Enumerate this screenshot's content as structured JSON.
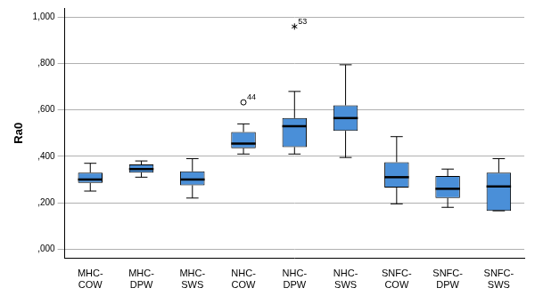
{
  "chart_data": {
    "type": "box",
    "y_label": "Ra0",
    "categories": [
      "MHC-COW",
      "MHC-DPW",
      "MHC-SWS",
      "NHC-COW",
      "NHC-DPW",
      "NHC-SWS",
      "SNFC-COW",
      "SNFC-DPW",
      "SNFC-SWS"
    ],
    "min": [
      0.25,
      0.31,
      0.22,
      0.41,
      0.41,
      0.395,
      0.195,
      0.18,
      0.165
    ],
    "q1": [
      0.285,
      0.33,
      0.275,
      0.435,
      0.44,
      0.51,
      0.265,
      0.22,
      0.165
    ],
    "median": [
      0.3,
      0.345,
      0.3,
      0.455,
      0.53,
      0.565,
      0.31,
      0.26,
      0.27
    ],
    "q3": [
      0.33,
      0.365,
      0.335,
      0.505,
      0.565,
      0.62,
      0.375,
      0.315,
      0.33
    ],
    "max": [
      0.37,
      0.38,
      0.39,
      0.54,
      0.68,
      0.795,
      0.485,
      0.345,
      0.39
    ],
    "outliers": [
      [],
      [],
      [],
      [
        {
          "value": 0.633,
          "label": "44",
          "marker": "circle"
        }
      ],
      [
        {
          "value": 0.96,
          "label": "53",
          "marker": "star"
        }
      ],
      [],
      [],
      [],
      []
    ],
    "color": "#4a8fd8",
    "ylim": [
      -0.04,
      1.04
    ],
    "yticks": [
      {
        "value": 0,
        "label": ",000"
      },
      {
        "value": 0.2,
        "label": ",200"
      },
      {
        "value": 0.4,
        "label": ",400"
      },
      {
        "value": 0.6,
        "label": ",600"
      },
      {
        "value": 0.8,
        "label": ",800"
      },
      {
        "value": 1.0,
        "label": "1,000"
      }
    ],
    "grid": true
  }
}
